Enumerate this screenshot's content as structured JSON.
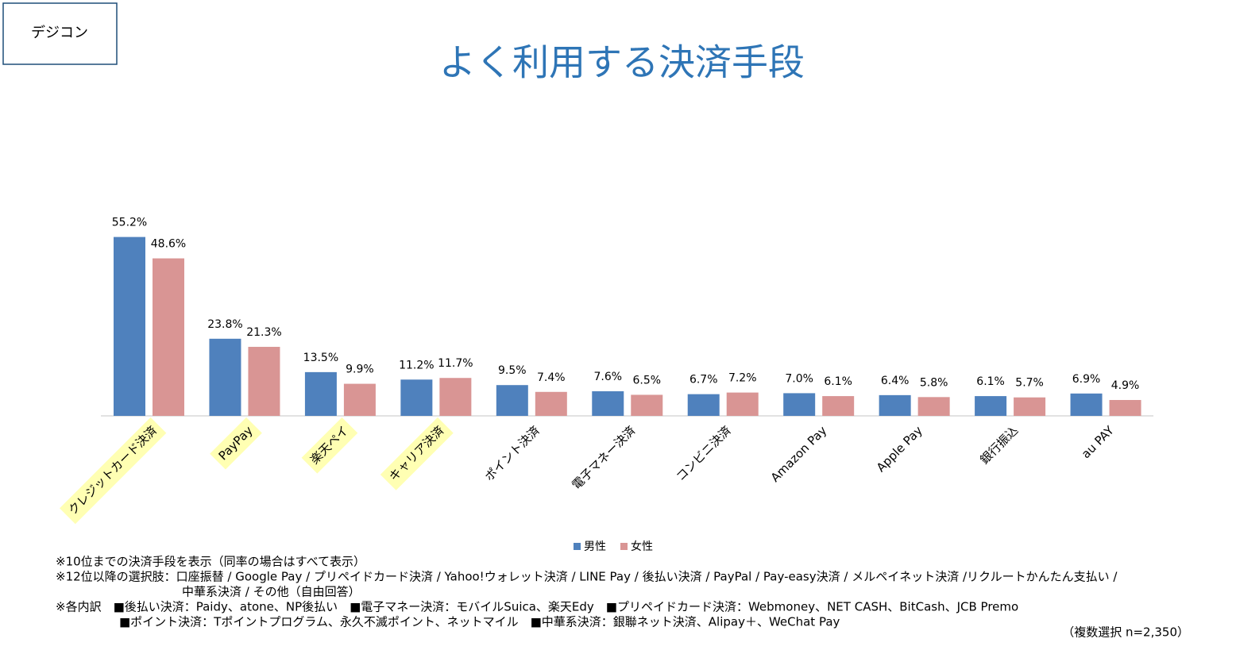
{
  "badge": "デジコン",
  "chart_data": {
    "type": "bar",
    "title": "よく利用する決済手段",
    "categories": [
      "クレジットカード決済",
      "PayPay",
      "楽天ペイ",
      "キャリア決済",
      "ポイント決済",
      "電子マネー決済",
      "コンビニ決済",
      "Amazon Pay",
      "Apple Pay",
      "銀行振込",
      "au PAY"
    ],
    "highlight": [
      true,
      true,
      true,
      true,
      false,
      false,
      false,
      false,
      false,
      false,
      false
    ],
    "highlight_color": "#ffffb3",
    "series": [
      {
        "name": "男性",
        "color": "#4f81bd",
        "values": [
          55.2,
          23.8,
          13.5,
          11.2,
          9.5,
          7.6,
          6.7,
          7.0,
          6.4,
          6.1,
          6.9
        ],
        "value_labels": [
          "55.2%",
          "23.8%",
          "13.5%",
          "11.2%",
          "9.5%",
          "7.6%",
          "6.7%",
          "7.0%",
          "6.4%",
          "6.1%",
          "6.9%"
        ]
      },
      {
        "name": "女性",
        "color": "#d99594",
        "values": [
          48.6,
          21.3,
          9.9,
          11.7,
          7.4,
          6.5,
          7.2,
          6.1,
          5.8,
          5.7,
          4.9
        ],
        "value_labels": [
          "48.6%",
          "21.3%",
          "9.9%",
          "11.7%",
          "7.4%",
          "6.5%",
          "7.2%",
          "6.1%",
          "5.8%",
          "5.7%",
          "4.9%"
        ]
      }
    ],
    "ylim": [
      0,
      60
    ],
    "legend": "bottom"
  },
  "notes": [
    "※10位までの決済手段を表示（同率の場合はすべて表示）",
    "※12位以降の選択肢：口座振替 / Google Pay / プリペイドカード決済 / Yahoo!ウォレット決済 / LINE Pay  / 後払い決済 / PayPal / Pay-easy決済 / メルペイネット決済 /リクルートかんたん支払い /",
    "中華系決済 / その他（自由回答）",
    "※各内訳　■後払い決済：Paidy、atone、NP後払い　■電子マネー決済：モバイルSuica、楽天Edy　■プリペイドカード決済：Webmoney、NET CASH、BitCash、JCB Premo",
    "■ポイント決済：Tポイントプログラム、永久不滅ポイント、ネットマイル　■中華系決済：銀聯ネット決済、Alipay＋、WeChat Pay"
  ],
  "sample_note": "（複数選択 n=2,350）"
}
